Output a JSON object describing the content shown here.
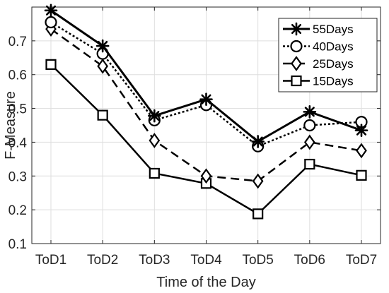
{
  "chart_data": {
    "type": "line",
    "categories": [
      "ToD1",
      "ToD2",
      "ToD3",
      "ToD4",
      "ToD5",
      "ToD6",
      "ToD7"
    ],
    "series": [
      {
        "name": "55Days",
        "values": [
          0.79,
          0.685,
          0.478,
          0.527,
          0.402,
          0.49,
          0.435
        ],
        "marker": "asterisk",
        "dash": "solid",
        "line_width": 3
      },
      {
        "name": "40Days",
        "values": [
          0.755,
          0.662,
          0.465,
          0.51,
          0.388,
          0.45,
          0.46
        ],
        "marker": "circle",
        "dash": "dotted",
        "line_width": 2.5
      },
      {
        "name": "25Days",
        "values": [
          0.735,
          0.625,
          0.405,
          0.3,
          0.285,
          0.4,
          0.375
        ],
        "marker": "diamond",
        "dash": "dashed",
        "line_width": 2.5
      },
      {
        "name": "15Days",
        "values": [
          0.63,
          0.48,
          0.308,
          0.278,
          0.188,
          0.335,
          0.302
        ],
        "marker": "square",
        "dash": "solid",
        "line_width": 2.5
      }
    ],
    "xlabel": "Time of the Day",
    "ylabel": "F-Measure",
    "ylim": [
      0.1,
      0.8
    ],
    "yticks": [
      "0.1",
      "0.2",
      "0.3",
      "0.4",
      "0.5",
      "0.6",
      "0.7"
    ],
    "grid": true,
    "legend_position": "top-right",
    "colors": {
      "series": "#000000",
      "grid": "#dedede",
      "axis": "#262626"
    }
  }
}
